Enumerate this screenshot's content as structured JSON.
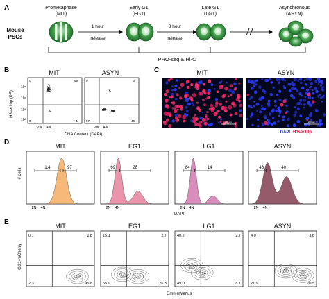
{
  "panelA": {
    "label": "A",
    "species": [
      "Mouse",
      "PSCs"
    ],
    "stages": [
      {
        "name": "Prometaphase",
        "abbr": "(MIT)"
      },
      {
        "name": "Early G1",
        "abbr": "(EG1)"
      },
      {
        "name": "Late G1",
        "abbr": "(LG1)"
      },
      {
        "name": "Asynchronous",
        "abbr": "(ASYN)"
      }
    ],
    "arrows": [
      {
        "line1": "1 hour",
        "line2": "release"
      },
      {
        "line1": "3 hour",
        "line2": "release"
      }
    ],
    "assays": "PRO-seq & Hi-C"
  },
  "panelB": {
    "label": "B",
    "ylabel": "H3ser10p (PE)",
    "xlabel": "DNA Content (DAPI)",
    "plots": [
      {
        "title": "MIT",
        "quadrants": {
          "tl": "0",
          "tr": "99",
          "bl": "0",
          "br": "1"
        },
        "ticks": [
          "2N",
          "4N"
        ],
        "markers": [
          "10⁵",
          "10⁴",
          "10³",
          "10²"
        ]
      },
      {
        "title": "ASYN",
        "quadrants": {
          "tl": "0",
          "tr": "3",
          "bl": "57",
          "br": "40"
        },
        "ticks": [
          "2N",
          "4N"
        ],
        "markers": []
      }
    ]
  },
  "panelC": {
    "label": "C",
    "images": [
      {
        "title": "MIT",
        "scale": "200 µm"
      },
      {
        "title": "ASYN",
        "scale": "200 µm"
      }
    ],
    "legend": [
      {
        "text": "DAPI",
        "color": "#1a2fe0"
      },
      {
        "text": "H3ser10p",
        "color": "#e0103c"
      }
    ]
  },
  "panelD": {
    "label": "D",
    "ylabel": "# cells",
    "xlabel": "DAPI",
    "plots": [
      {
        "title": "MIT",
        "gates": [
          "1.4",
          "97"
        ],
        "color": "#f6b26b",
        "ticks": [
          "2N",
          "4N"
        ]
      },
      {
        "title": "EG1",
        "gates": [
          "69",
          "28"
        ],
        "color": "#e88aa2",
        "ticks": [
          "2N",
          "4N"
        ]
      },
      {
        "title": "LG1",
        "gates": [
          "84",
          "14"
        ],
        "color": "#d481b6",
        "ticks": [
          "2N",
          "4N"
        ]
      },
      {
        "title": "ASYN",
        "gates": [
          "46",
          "40"
        ],
        "color": "#8a4a5a",
        "ticks": [
          "2N",
          "4N"
        ]
      }
    ]
  },
  "panelE": {
    "label": "E",
    "ylabel": "Cdt1-mCherry",
    "xlabel": "Gmn-mVenus",
    "plots": [
      {
        "title": "MIT",
        "quadrants": {
          "tl": "0.1",
          "tr": "1.8",
          "bl": "2.3",
          "br": "95.8"
        }
      },
      {
        "title": "EG1",
        "quadrants": {
          "tl": "15.1",
          "tr": "2.7",
          "bl": "55.9",
          "br": "26.3"
        }
      },
      {
        "title": "LG1",
        "quadrants": {
          "tl": "40.2",
          "tr": "2.7",
          "bl": "49.0",
          "br": "8.1"
        }
      },
      {
        "title": "ASYN",
        "quadrants": {
          "tl": "4.0",
          "tr": "3.6",
          "bl": "21.9",
          "br": "70.5"
        }
      }
    ]
  }
}
